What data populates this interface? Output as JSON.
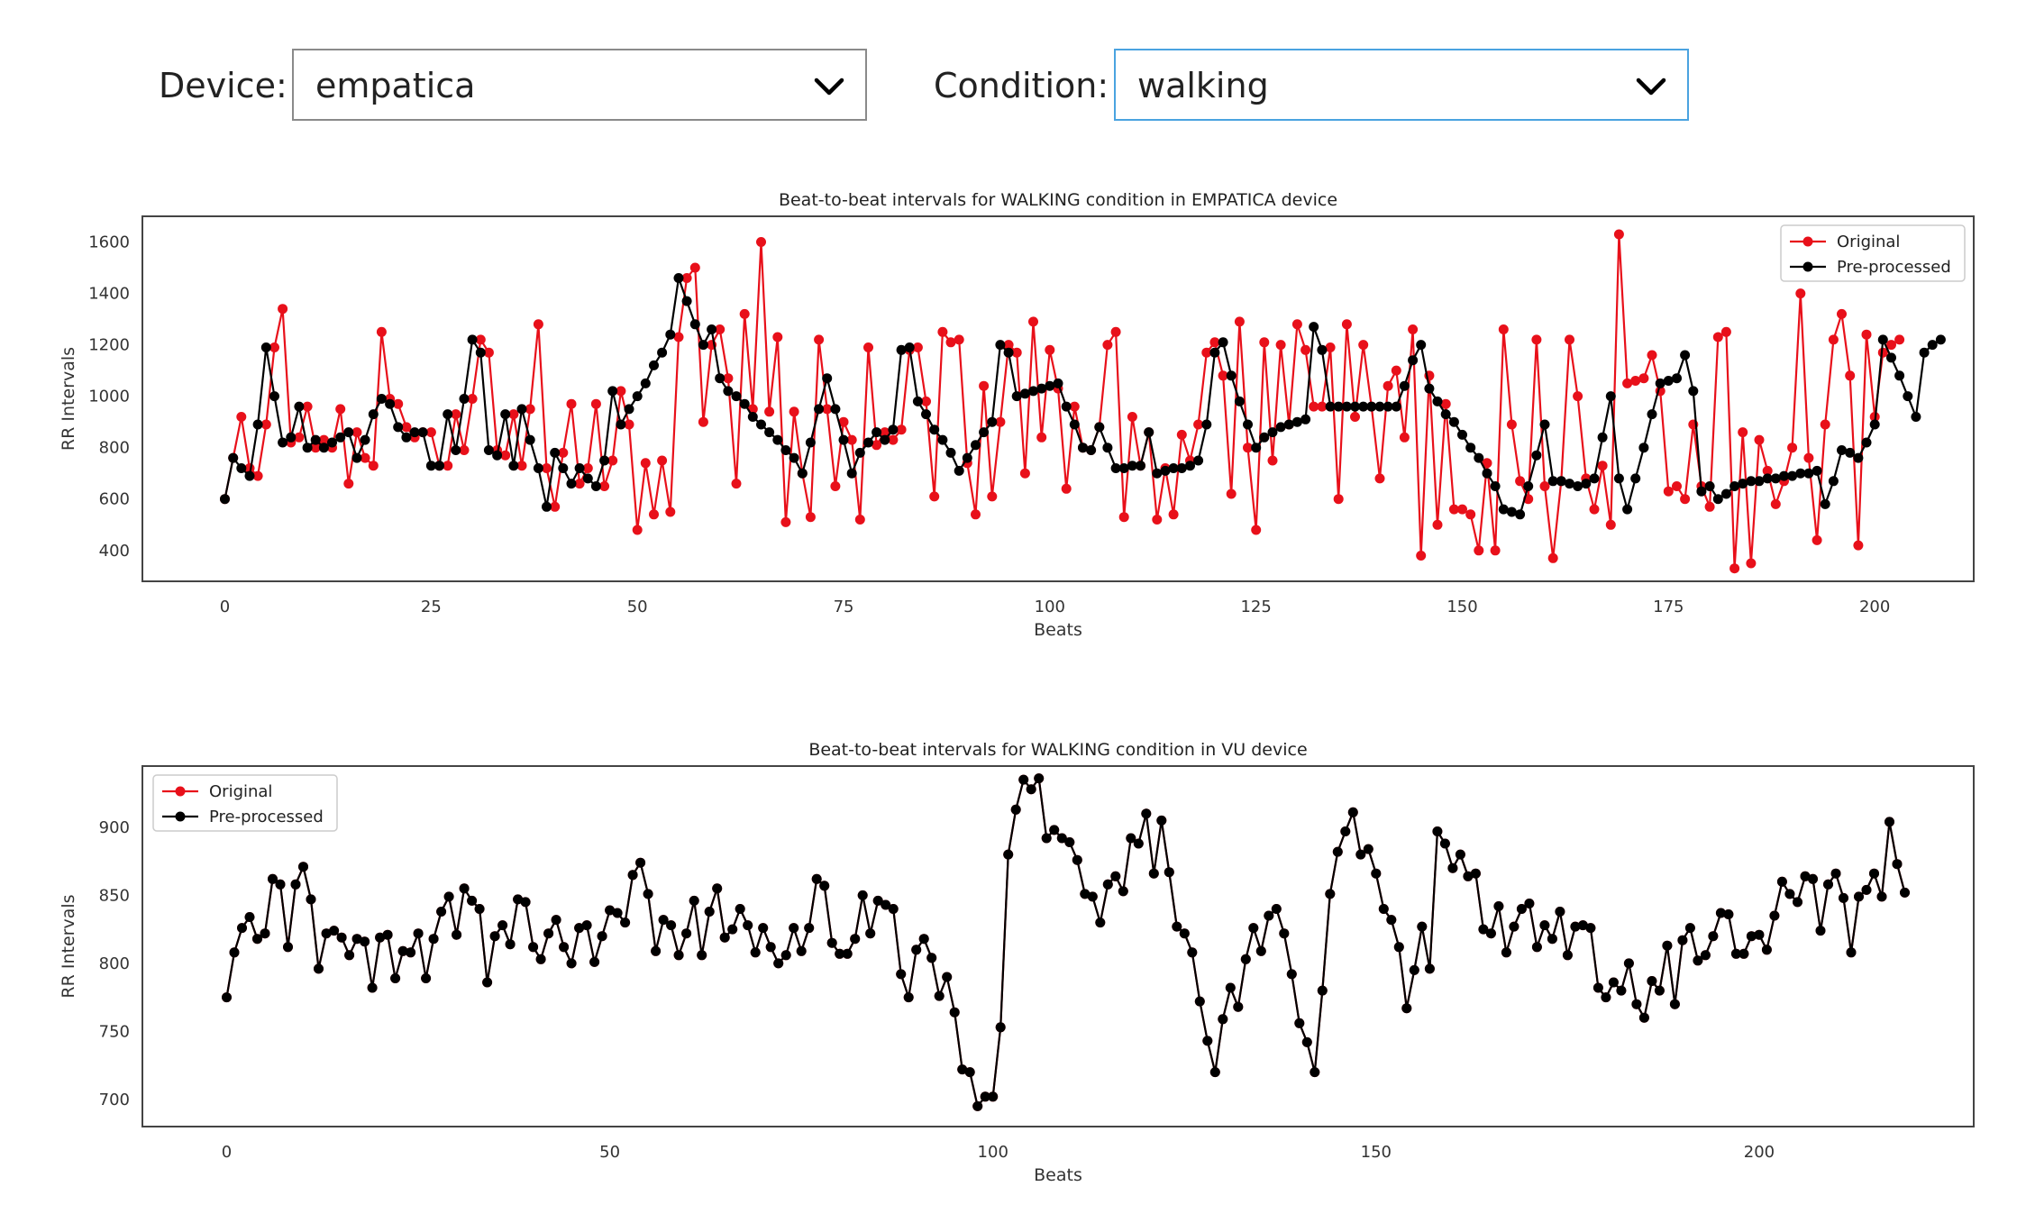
{
  "controls": {
    "device_label": "Device:",
    "device_value": "empatica",
    "condition_label": "Condition:",
    "condition_value": "walking",
    "dropdown_icon": "chevron-down-icon"
  },
  "colors": {
    "original": "#e8101a",
    "preprocessed": "#000000"
  },
  "chart_data": [
    {
      "type": "line",
      "title": "Beat-to-beat intervals for WALKING condition in EMPATICA device",
      "xlabel": "Beats",
      "ylabel": "RR Intervals",
      "xlim": [
        -10,
        212
      ],
      "ylim": [
        280,
        1700
      ],
      "xticks": [
        0,
        25,
        50,
        75,
        100,
        125,
        150,
        175,
        200
      ],
      "yticks": [
        400,
        600,
        800,
        1000,
        1200,
        1400,
        1600
      ],
      "grid": false,
      "legend_position": "upper right",
      "series": [
        {
          "name": "Original",
          "color": "#e8101a",
          "values": [
            600,
            760,
            920,
            720,
            690,
            890,
            1190,
            1340,
            820,
            840,
            960,
            800,
            830,
            800,
            950,
            660,
            860,
            760,
            730,
            1250,
            990,
            970,
            880,
            840,
            860,
            860,
            730,
            730,
            930,
            790,
            990,
            1220,
            1170,
            790,
            770,
            930,
            730,
            950,
            1280,
            720,
            570,
            780,
            970,
            660,
            720,
            970,
            650,
            750,
            1020,
            890,
            480,
            740,
            540,
            750,
            550,
            1230,
            1460,
            1500,
            900,
            1200,
            1260,
            1070,
            660,
            1320,
            950,
            1600,
            940,
            1230,
            510,
            940,
            700,
            530,
            1220,
            950,
            650,
            900,
            830,
            520,
            1190,
            810,
            860,
            830,
            870,
            1180,
            1190,
            980,
            610,
            1250,
            1210,
            1220,
            740,
            540,
            1040,
            610,
            900,
            1200,
            1170,
            700,
            1290,
            840,
            1180,
            1030,
            640,
            960,
            800,
            790,
            880,
            1200,
            1250,
            530,
            920,
            730,
            860,
            520,
            720,
            540,
            850,
            750,
            890,
            1170,
            1210,
            1080,
            620,
            1290,
            800,
            480,
            1210,
            750,
            1200,
            890,
            1280,
            1180,
            960,
            960,
            1190,
            600,
            1280,
            920,
            1200,
            960,
            680,
            1040,
            1100,
            840,
            1260,
            380,
            1080,
            500,
            970,
            560,
            560,
            540,
            400,
            740,
            400,
            1260,
            890,
            670,
            600,
            1220,
            650,
            370,
            670,
            1220,
            1000,
            680,
            560,
            730,
            500,
            1630,
            1050,
            1060,
            1070,
            1160,
            1020,
            630,
            650,
            600,
            890,
            650,
            570,
            1230,
            1250,
            330,
            860,
            350,
            830,
            710,
            580,
            670,
            800,
            1400,
            760,
            440,
            890,
            1220,
            1320,
            1080,
            420,
            1240,
            920,
            1170,
            1200,
            1220
          ]
        },
        {
          "name": "Pre-processed",
          "color": "#000000",
          "values": [
            600,
            760,
            720,
            690,
            890,
            1190,
            1000,
            820,
            840,
            960,
            800,
            830,
            800,
            820,
            840,
            860,
            760,
            830,
            930,
            990,
            970,
            880,
            840,
            860,
            860,
            730,
            730,
            930,
            790,
            990,
            1220,
            1170,
            790,
            770,
            930,
            730,
            950,
            830,
            720,
            570,
            780,
            720,
            660,
            720,
            680,
            650,
            750,
            1020,
            890,
            950,
            1000,
            1050,
            1120,
            1170,
            1240,
            1460,
            1370,
            1280,
            1200,
            1260,
            1070,
            1020,
            1000,
            970,
            920,
            890,
            860,
            830,
            790,
            760,
            700,
            820,
            950,
            1070,
            950,
            830,
            700,
            780,
            820,
            860,
            830,
            870,
            1180,
            1190,
            980,
            930,
            870,
            830,
            780,
            710,
            760,
            810,
            860,
            900,
            1200,
            1170,
            1000,
            1010,
            1020,
            1030,
            1040,
            1050,
            960,
            890,
            800,
            790,
            880,
            800,
            720,
            720,
            730,
            730,
            860,
            700,
            710,
            720,
            720,
            730,
            750,
            890,
            1170,
            1210,
            1080,
            980,
            890,
            800,
            840,
            860,
            880,
            890,
            900,
            910,
            1270,
            1180,
            960,
            960,
            960,
            960,
            960,
            960,
            960,
            960,
            960,
            1040,
            1140,
            1200,
            1030,
            980,
            930,
            900,
            850,
            800,
            760,
            700,
            650,
            560,
            550,
            540,
            650,
            770,
            890,
            670,
            670,
            660,
            650,
            660,
            680,
            840,
            1000,
            680,
            560,
            680,
            800,
            930,
            1050,
            1060,
            1070,
            1160,
            1020,
            630,
            650,
            600,
            620,
            650,
            660,
            670,
            670,
            680,
            680,
            690,
            690,
            700,
            700,
            710,
            580,
            670,
            790,
            780,
            760,
            820,
            890,
            1220,
            1150,
            1080,
            1000,
            920,
            1170,
            1200,
            1220
          ]
        }
      ]
    },
    {
      "type": "line",
      "title": "Beat-to-beat intervals for WALKING condition in VU device",
      "xlabel": "Beats",
      "ylabel": "RR Intervals",
      "xlim": [
        -11,
        228
      ],
      "ylim": [
        680,
        945
      ],
      "xticks": [
        0,
        50,
        100,
        150,
        200
      ],
      "yticks": [
        700,
        750,
        800,
        850,
        900
      ],
      "grid": false,
      "legend_position": "upper left",
      "series": [
        {
          "name": "Original",
          "color": "#e8101a",
          "values": [
            775,
            808,
            826,
            834,
            818,
            822,
            862,
            858,
            812,
            858,
            871,
            847,
            796,
            822,
            824,
            819,
            806,
            818,
            816,
            782,
            819,
            821,
            789,
            809,
            808,
            822,
            789,
            818,
            838,
            849,
            821,
            855,
            846,
            840,
            786,
            820,
            828,
            814,
            847,
            845,
            812,
            803,
            822,
            832,
            812,
            800,
            826,
            828,
            801,
            820,
            839,
            837,
            830,
            865,
            874,
            851,
            809,
            832,
            828,
            806,
            822,
            846,
            806,
            838,
            855,
            819,
            825,
            840,
            828,
            808,
            826,
            812,
            800,
            806,
            826,
            809,
            826,
            862,
            857,
            815,
            807,
            807,
            818,
            850,
            822,
            846,
            843,
            840,
            792,
            775,
            810,
            818,
            804,
            776,
            790,
            764,
            722,
            720,
            695,
            702,
            702,
            753,
            880,
            913,
            935,
            928,
            936,
            892,
            898,
            892,
            889,
            876,
            851,
            849,
            830,
            858,
            864,
            853,
            892,
            888,
            910,
            866,
            905,
            867,
            827,
            822,
            808,
            772,
            743,
            720,
            759,
            782,
            768,
            803,
            826,
            809,
            835,
            840,
            822,
            792,
            756,
            742,
            720,
            780,
            851,
            882,
            897,
            911,
            880,
            884,
            866,
            840,
            832,
            812,
            767,
            795,
            827,
            796,
            897,
            888,
            870,
            880,
            864,
            866,
            825,
            822,
            842,
            808,
            827,
            840,
            844,
            812,
            828,
            818,
            838,
            806,
            827,
            828,
            826,
            782,
            775,
            786,
            780,
            800,
            770,
            760,
            787,
            780,
            813,
            770,
            817,
            826,
            802,
            806,
            820,
            837,
            836,
            807,
            807,
            820,
            821,
            810,
            835,
            860,
            851,
            845,
            864,
            862,
            824,
            858,
            866,
            848,
            808,
            849,
            854,
            866,
            849,
            904,
            873,
            852
          ]
        },
        {
          "name": "Pre-processed",
          "color": "#000000",
          "values": [
            775,
            808,
            826,
            834,
            818,
            822,
            862,
            858,
            812,
            858,
            871,
            847,
            796,
            822,
            824,
            819,
            806,
            818,
            816,
            782,
            819,
            821,
            789,
            809,
            808,
            822,
            789,
            818,
            838,
            849,
            821,
            855,
            846,
            840,
            786,
            820,
            828,
            814,
            847,
            845,
            812,
            803,
            822,
            832,
            812,
            800,
            826,
            828,
            801,
            820,
            839,
            837,
            830,
            865,
            874,
            851,
            809,
            832,
            828,
            806,
            822,
            846,
            806,
            838,
            855,
            819,
            825,
            840,
            828,
            808,
            826,
            812,
            800,
            806,
            826,
            809,
            826,
            862,
            857,
            815,
            807,
            807,
            818,
            850,
            822,
            846,
            843,
            840,
            792,
            775,
            810,
            818,
            804,
            776,
            790,
            764,
            722,
            720,
            695,
            702,
            702,
            753,
            880,
            913,
            935,
            928,
            936,
            892,
            898,
            892,
            889,
            876,
            851,
            849,
            830,
            858,
            864,
            853,
            892,
            888,
            910,
            866,
            905,
            867,
            827,
            822,
            808,
            772,
            743,
            720,
            759,
            782,
            768,
            803,
            826,
            809,
            835,
            840,
            822,
            792,
            756,
            742,
            720,
            780,
            851,
            882,
            897,
            911,
            880,
            884,
            866,
            840,
            832,
            812,
            767,
            795,
            827,
            796,
            897,
            888,
            870,
            880,
            864,
            866,
            825,
            822,
            842,
            808,
            827,
            840,
            844,
            812,
            828,
            818,
            838,
            806,
            827,
            828,
            826,
            782,
            775,
            786,
            780,
            800,
            770,
            760,
            787,
            780,
            813,
            770,
            817,
            826,
            802,
            806,
            820,
            837,
            836,
            807,
            807,
            820,
            821,
            810,
            835,
            860,
            851,
            845,
            864,
            862,
            824,
            858,
            866,
            848,
            808,
            849,
            854,
            866,
            849,
            904,
            873,
            852
          ]
        }
      ]
    }
  ]
}
